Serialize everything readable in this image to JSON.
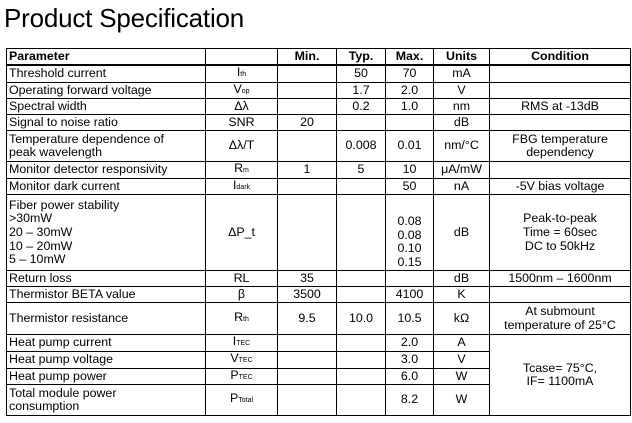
{
  "page": {
    "title": "Product Specification"
  },
  "table": {
    "headers": {
      "parameter": "Parameter",
      "symbol": "",
      "min": "Min.",
      "typ": "Typ.",
      "max": "Max.",
      "units": "Units",
      "condition": "Condition"
    },
    "rows": {
      "threshold": {
        "param": "Threshold current",
        "sym_main": "I",
        "sym_sub": "th",
        "min": "",
        "typ": "50",
        "max": "70",
        "unit": "mA",
        "cond": ""
      },
      "vop": {
        "param": "Operating forward voltage",
        "sym_main": "V",
        "sym_sub": "op",
        "min": "",
        "typ": "1.7",
        "max": "2.0",
        "unit": "V",
        "cond": ""
      },
      "width": {
        "param": "Spectral width",
        "sym": "Δλ",
        "min": "",
        "typ": "0.2",
        "max": "1.0",
        "unit": "nm",
        "cond": "RMS at -13dB"
      },
      "snr": {
        "param": "Signal to noise ratio",
        "sym": "SNR",
        "min": "20",
        "typ": "",
        "max": "",
        "unit": "dB",
        "cond": ""
      },
      "tempdep": {
        "param_l1": "Temperature dependence of",
        "param_l2": "peak wavelength",
        "sym": "Δλ/T",
        "min": "",
        "typ": "0.008",
        "max": "0.01",
        "unit": "nm/°C",
        "cond_l1": "FBG temperature",
        "cond_l2": "dependency"
      },
      "rm": {
        "param": "Monitor detector responsivity",
        "sym_main": "R",
        "sym_sub": "m",
        "min": "1",
        "typ": "5",
        "max": "10",
        "unit": "μA/mW",
        "cond": ""
      },
      "dark": {
        "param": "Monitor dark current",
        "sym_main": "I",
        "sym_sub": "dark",
        "min": "",
        "typ": "",
        "max": "50",
        "unit": "nA",
        "cond": "-5V bias voltage"
      },
      "fiber": {
        "param_l1": "Fiber power stability",
        "param_l2": ">30mW",
        "param_l3": "20 – 30mW",
        "param_l4": "10 – 20mW",
        "param_l5": "5 – 10mW",
        "sym": "ΔP_t",
        "min": "",
        "typ": "",
        "max_l1": "0.08",
        "max_l2": "0.08",
        "max_l3": "0.10",
        "max_l4": "0.15",
        "unit": "dB",
        "cond_l1": "Peak-to-peak",
        "cond_l2": "Time = 60sec",
        "cond_l3": "DC to 50kHz"
      },
      "rl": {
        "param": "Return loss",
        "sym": "RL",
        "min": "35",
        "typ": "",
        "max": "",
        "unit": "dB",
        "cond": "1500nm – 1600nm"
      },
      "beta": {
        "param": "Thermistor BETA value",
        "sym": "β",
        "min": "3500",
        "typ": "",
        "max": "4100",
        "unit": "K",
        "cond": ""
      },
      "rth": {
        "param": "Thermistor resistance",
        "sym_main": "R",
        "sym_sub": "th",
        "min": "9.5",
        "typ": "10.0",
        "max": "10.5",
        "unit": "kΩ",
        "cond_l1": "At submount",
        "cond_l2": "temperature of 25°C"
      },
      "itec": {
        "param": "Heat pump current",
        "sym_main": "I",
        "sym_sub": "TEC",
        "min": "",
        "typ": "",
        "max": "2.0",
        "unit": "A"
      },
      "vtec": {
        "param": "Heat pump voltage",
        "sym_main": "V",
        "sym_sub": "TEC",
        "min": "",
        "typ": "",
        "max": "3.0",
        "unit": "V"
      },
      "ptec": {
        "param": "Heat pump power",
        "sym_main": "P",
        "sym_sub": "TEC",
        "min": "",
        "typ": "",
        "max": "6.0",
        "unit": "W"
      },
      "ptotal": {
        "param_l1": "Total module power",
        "param_l2": "consumption",
        "sym_main": "P",
        "sym_sub": "Total",
        "min": "",
        "typ": "",
        "max": "8.2",
        "unit": "W"
      },
      "tec_cond": {
        "l1": "Tcase= 75°C,",
        "l2": "IF= 1100mA"
      }
    }
  }
}
